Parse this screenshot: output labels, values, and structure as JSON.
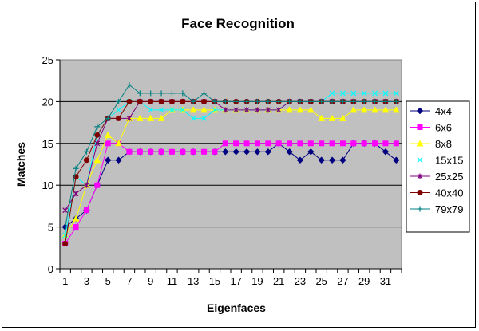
{
  "chart_data": {
    "type": "line",
    "title": "Face Recognition",
    "xlabel": "Eigenfaces",
    "ylabel": "Matches",
    "ylim": [
      0,
      25
    ],
    "yticks": [
      0,
      5,
      10,
      15,
      20,
      25
    ],
    "x": [
      1,
      2,
      3,
      4,
      5,
      6,
      7,
      8,
      9,
      10,
      11,
      12,
      13,
      14,
      15,
      16,
      17,
      18,
      19,
      20,
      21,
      22,
      23,
      24,
      25,
      26,
      27,
      28,
      29,
      30,
      31,
      32
    ],
    "xtick_labels": [
      "1",
      "3",
      "5",
      "7",
      "9",
      "11",
      "13",
      "15",
      "17",
      "19",
      "21",
      "23",
      "25",
      "27",
      "29",
      "31"
    ],
    "grid": "horizontal",
    "legend": "right",
    "plot_background": "#c0c0c0",
    "series": [
      {
        "name": "4x4",
        "color": "#000080",
        "marker": "diamond",
        "values": [
          5,
          6,
          7,
          10,
          13,
          13,
          14,
          14,
          14,
          14,
          14,
          14,
          14,
          14,
          14,
          14,
          14,
          14,
          14,
          14,
          15,
          14,
          13,
          14,
          13,
          13,
          13,
          15,
          15,
          15,
          14,
          13
        ]
      },
      {
        "name": "6x6",
        "color": "#ff00ff",
        "marker": "square",
        "values": [
          3,
          5,
          7,
          10,
          15,
          15,
          14,
          14,
          14,
          14,
          14,
          14,
          14,
          14,
          14,
          15,
          15,
          15,
          15,
          15,
          15,
          15,
          15,
          15,
          15,
          15,
          15,
          15,
          15,
          15,
          15,
          15
        ]
      },
      {
        "name": "8x8",
        "color": "#ffff00",
        "marker": "triangle",
        "values": [
          4,
          6,
          10,
          13,
          16,
          15,
          18,
          18,
          18,
          18,
          19,
          19,
          19,
          19,
          19,
          19,
          19,
          19,
          19,
          19,
          19,
          19,
          19,
          19,
          18,
          18,
          18,
          19,
          19,
          19,
          19,
          19
        ]
      },
      {
        "name": "15x15",
        "color": "#00ffff",
        "marker": "x",
        "values": [
          4,
          11,
          10,
          16,
          18,
          19,
          20,
          20,
          19,
          19,
          19,
          19,
          18,
          18,
          19,
          19,
          19,
          19,
          19,
          19,
          19,
          20,
          20,
          20,
          20,
          21,
          21,
          21,
          21,
          21,
          21,
          21
        ]
      },
      {
        "name": "25x25",
        "color": "#800080",
        "marker": "star",
        "values": [
          7,
          9,
          10,
          15,
          18,
          18,
          18,
          20,
          20,
          20,
          20,
          20,
          20,
          20,
          20,
          19,
          19,
          19,
          19,
          19,
          19,
          20,
          20,
          20,
          20,
          20,
          20,
          20,
          20,
          20,
          20,
          20
        ]
      },
      {
        "name": "40x40",
        "color": "#800000",
        "marker": "circle",
        "values": [
          3,
          11,
          13,
          16,
          18,
          18,
          20,
          20,
          20,
          20,
          20,
          20,
          20,
          20,
          20,
          20,
          20,
          20,
          20,
          20,
          20,
          20,
          20,
          20,
          20,
          20,
          20,
          20,
          20,
          20,
          20,
          20
        ]
      },
      {
        "name": "79x79",
        "color": "#008080",
        "marker": "plus",
        "values": [
          5,
          12,
          14,
          17,
          18,
          20,
          22,
          21,
          21,
          21,
          21,
          21,
          20,
          21,
          20,
          20,
          20,
          20,
          20,
          20,
          20,
          20,
          20,
          20,
          20,
          20,
          20,
          20,
          20,
          20,
          20,
          20
        ]
      }
    ]
  }
}
